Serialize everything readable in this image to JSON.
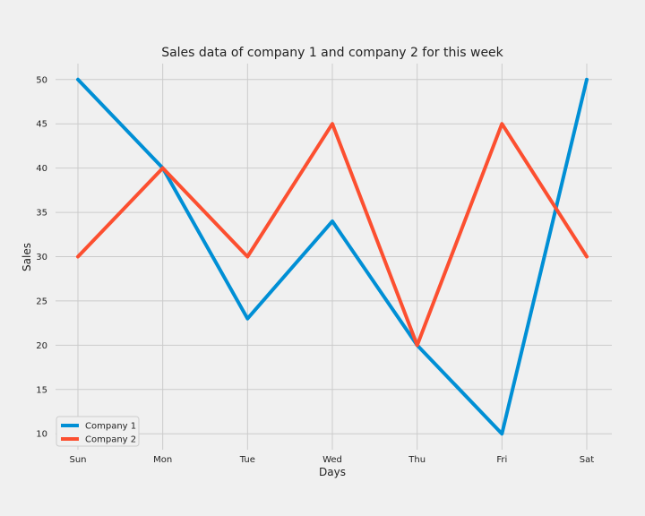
{
  "chart_data": {
    "type": "line",
    "title": "Sales data of company 1 and company 2 for this week",
    "xlabel": "Days",
    "ylabel": "Sales",
    "categories": [
      "Sun",
      "Mon",
      "Tue",
      "Wed",
      "Thu",
      "Fri",
      "Sat"
    ],
    "series": [
      {
        "name": "Company 1",
        "values": [
          50,
          40,
          23,
          34,
          20,
          10,
          50
        ],
        "color": "#008fd5"
      },
      {
        "name": "Company 2",
        "values": [
          30,
          40,
          30,
          45,
          20,
          45,
          30
        ],
        "color": "#fc4f30"
      }
    ],
    "yticks": [
      10,
      15,
      20,
      25,
      30,
      35,
      40,
      45,
      50
    ],
    "ylim": [
      8.2,
      51.8
    ],
    "grid": true,
    "legend_position": "bottom-left",
    "colors": {
      "background": "#f0f0f0",
      "grid": "#cbcbcb",
      "text": "#222222"
    }
  }
}
